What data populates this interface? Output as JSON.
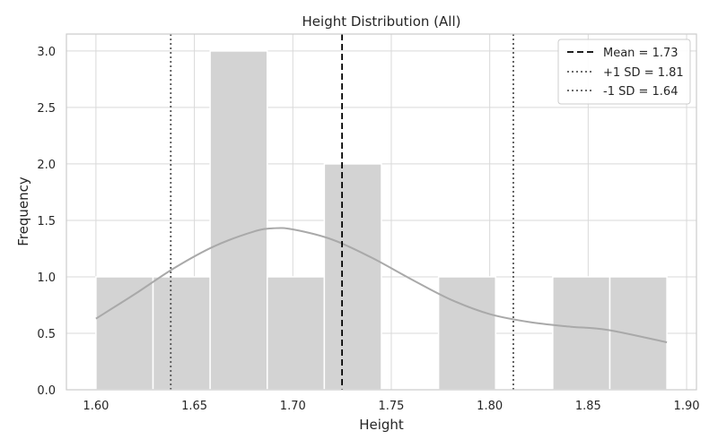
{
  "chart_data": {
    "type": "bar",
    "title": "Height Distribution (All)",
    "xlabel": "Height",
    "ylabel": "Frequency",
    "xlim": [
      1.585,
      1.905
    ],
    "ylim": [
      0,
      3.15
    ],
    "xticks": [
      1.6,
      1.65,
      1.7,
      1.75,
      1.8,
      1.85,
      1.9
    ],
    "xtick_labels": [
      "1.60",
      "1.65",
      "1.70",
      "1.75",
      "1.80",
      "1.85",
      "1.90"
    ],
    "yticks": [
      0.0,
      0.5,
      1.0,
      1.5,
      2.0,
      2.5,
      3.0
    ],
    "ytick_labels": [
      "0.0",
      "0.5",
      "1.0",
      "1.5",
      "2.0",
      "2.5",
      "3.0"
    ],
    "grid": true,
    "legend_position": "top-right",
    "bin_edges": [
      1.6,
      1.629,
      1.658,
      1.687,
      1.716,
      1.745,
      1.774,
      1.803,
      1.832,
      1.861,
      1.89
    ],
    "counts": [
      1,
      1,
      3,
      1,
      2,
      0,
      1,
      0,
      1,
      1
    ],
    "kde": {
      "x": [
        1.6,
        1.62,
        1.64,
        1.66,
        1.68,
        1.69,
        1.7,
        1.72,
        1.74,
        1.76,
        1.78,
        1.8,
        1.82,
        1.84,
        1.86,
        1.89
      ],
      "y": [
        0.63,
        0.85,
        1.08,
        1.27,
        1.4,
        1.43,
        1.42,
        1.33,
        1.17,
        0.98,
        0.8,
        0.67,
        0.6,
        0.56,
        0.53,
        0.42
      ]
    },
    "ref_lines": [
      {
        "x": 1.725,
        "style": "dashed",
        "color": "#000000",
        "label": "Mean = 1.73"
      },
      {
        "x": 1.812,
        "style": "dotted",
        "color": "#555555",
        "label": "+1 SD = 1.81"
      },
      {
        "x": 1.638,
        "style": "dotted",
        "color": "#555555",
        "label": "-1 SD = 1.64"
      }
    ],
    "colors": {
      "bar": "#d3d3d3",
      "kde": "#a9a9a9",
      "grid": "#d9d9d9",
      "frame": "#cccccc"
    }
  }
}
